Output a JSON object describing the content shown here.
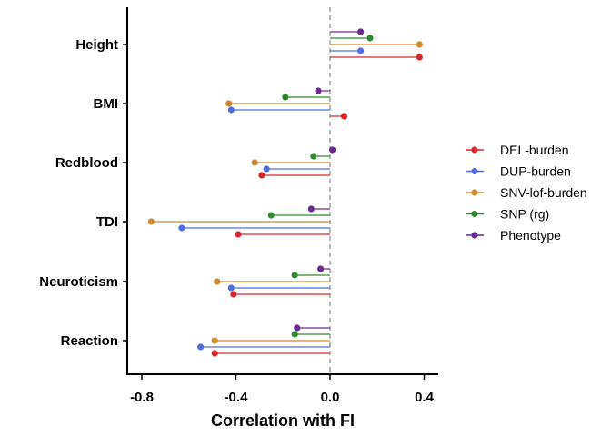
{
  "chart_data": {
    "type": "lollipop",
    "orientation": "horizontal",
    "xlabel": "Correlation with FI",
    "ylabel": "",
    "xlim": [
      -0.85,
      0.45
    ],
    "xticks": [
      -0.8,
      -0.4,
      0.0,
      0.4
    ],
    "xtick_labels": [
      "-0.8",
      "-0.4",
      "0.0",
      "0.4"
    ],
    "reference_line": 0.0,
    "categories": [
      "Height",
      "BMI",
      "Redblood",
      "TDI",
      "Neuroticism",
      "Reaction"
    ],
    "legend_position": "right",
    "series": [
      {
        "name": "DEL-burden",
        "color": "#d62728",
        "values": [
          0.38,
          0.06,
          -0.29,
          -0.39,
          -0.41,
          -0.49
        ]
      },
      {
        "name": "DUP-burden",
        "color": "#4f6ee0",
        "values": [
          0.13,
          -0.42,
          -0.27,
          -0.63,
          -0.42,
          -0.55
        ]
      },
      {
        "name": "SNV-lof-burden",
        "color": "#d18a2a",
        "values": [
          0.38,
          -0.43,
          -0.32,
          -0.76,
          -0.48,
          -0.49
        ]
      },
      {
        "name": "SNP (rg)",
        "color": "#2e8b2e",
        "values": [
          0.17,
          -0.19,
          -0.07,
          -0.25,
          -0.15,
          -0.15
        ]
      },
      {
        "name": "Phenotype",
        "color": "#6b2a8f",
        "values": [
          0.13,
          -0.05,
          0.01,
          -0.08,
          -0.04,
          -0.14
        ]
      }
    ]
  }
}
